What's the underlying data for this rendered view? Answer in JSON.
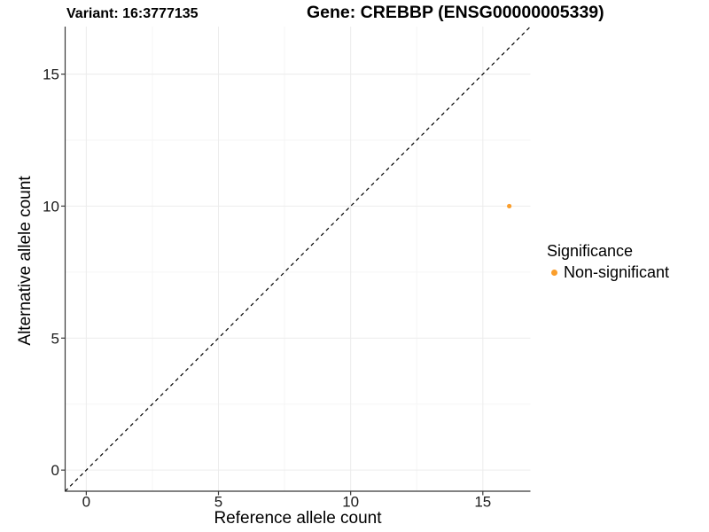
{
  "chart_data": {
    "type": "scatter",
    "title_variant": "Variant: 16:3777135",
    "title_gene": "Gene: CREBBP (ENSG00000005339)",
    "xlabel": "Reference allele count",
    "ylabel": "Alternative allele count",
    "xlim": [
      -0.8,
      16.8
    ],
    "ylim": [
      -0.8,
      16.8
    ],
    "xticks": [
      0,
      5,
      10,
      15
    ],
    "yticks": [
      0,
      5,
      10,
      15
    ],
    "x_minor_ticks": [
      2.5,
      7.5,
      12.5
    ],
    "y_minor_ticks": [
      2.5,
      7.5,
      12.5
    ],
    "grid": "major+minor",
    "identity_line": {
      "slope": 1,
      "intercept": 0,
      "style": "dashed",
      "color": "#000000"
    },
    "points": [
      {
        "x": 16,
        "y": 10,
        "series": "Non-significant"
      }
    ],
    "legend": {
      "title": "Significance",
      "position": "right",
      "entries": [
        {
          "label": "Non-significant",
          "color": "#FA9E2C",
          "marker": "circle"
        }
      ]
    },
    "colors": {
      "point": "#FA9E2C",
      "axis_line": "#383838",
      "grid_major": "#ECECEC",
      "grid_minor": "#F5F5F5",
      "tick_text": "#1A1A1A",
      "title_text": "#000000"
    },
    "background": "#FFFFFF"
  }
}
